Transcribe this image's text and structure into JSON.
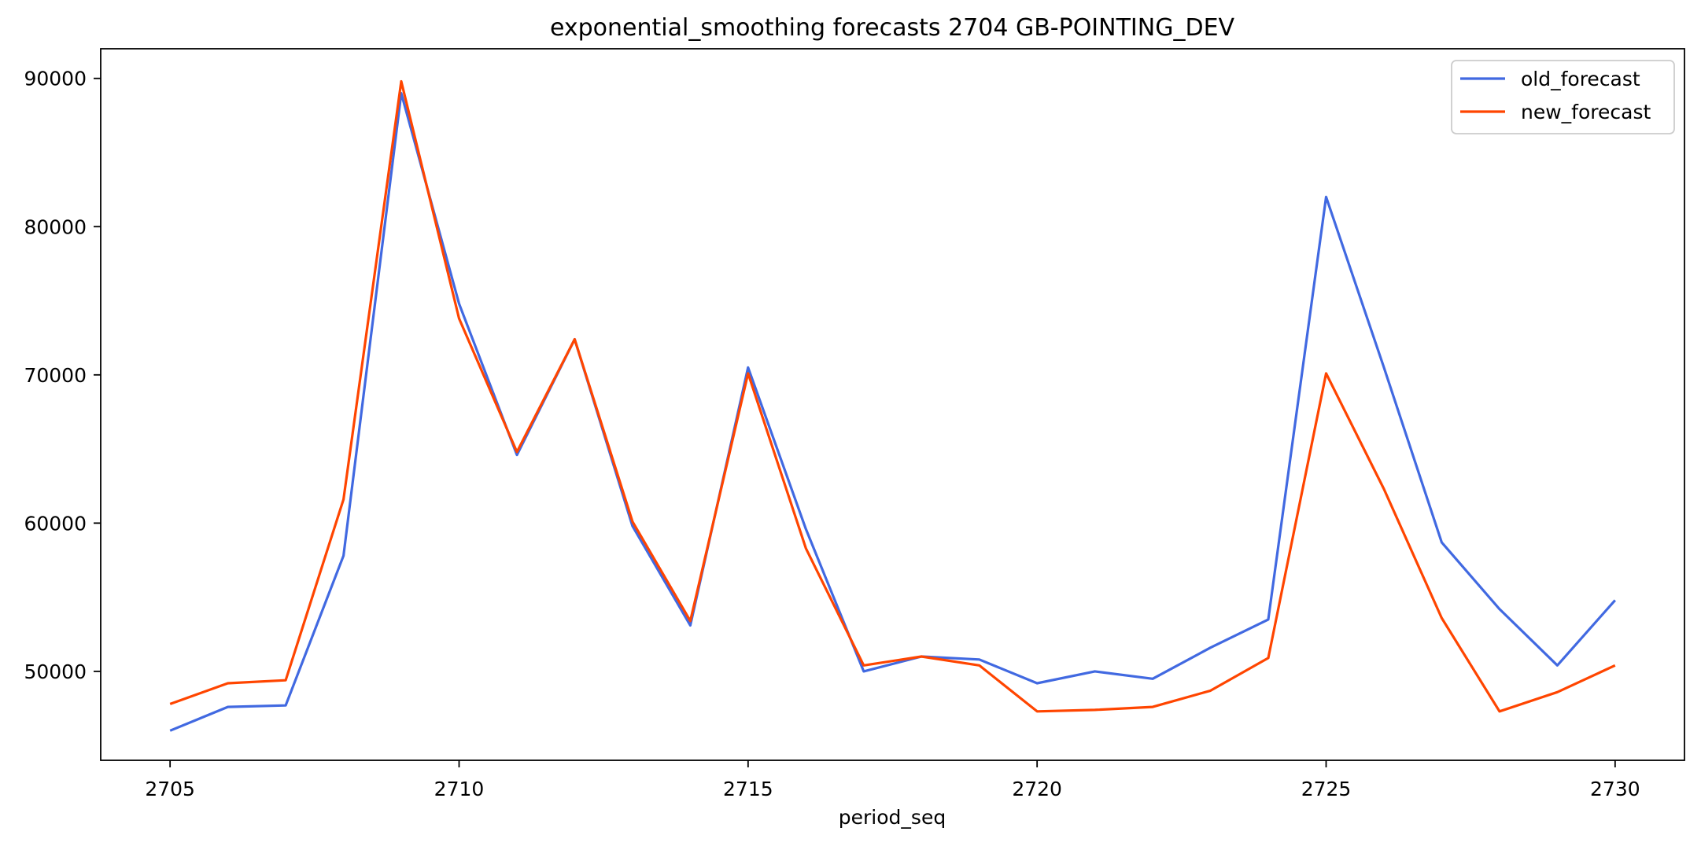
{
  "chart_data": {
    "type": "line",
    "title": "exponential_smoothing forecasts 2704 GB-POINTING_DEV",
    "xlabel": "period_seq",
    "ylabel": "",
    "x": [
      2705,
      2706,
      2707,
      2708,
      2709,
      2710,
      2711,
      2712,
      2713,
      2714,
      2715,
      2716,
      2717,
      2718,
      2719,
      2720,
      2721,
      2722,
      2723,
      2724,
      2725,
      2726,
      2727,
      2728,
      2729,
      2730
    ],
    "xlim": [
      2703.8,
      2731.2
    ],
    "ylim": [
      44000,
      92000
    ],
    "xticks": [
      2705,
      2710,
      2715,
      2720,
      2725,
      2730
    ],
    "yticks": [
      50000,
      60000,
      70000,
      80000,
      90000
    ],
    "grid": false,
    "legend_position": "top-right",
    "series": [
      {
        "name": "old_forecast",
        "color": "#4169e1",
        "values": [
          46000,
          47600,
          47700,
          57800,
          89000,
          74800,
          64600,
          72400,
          59800,
          53100,
          70500,
          59600,
          50000,
          51000,
          50800,
          49200,
          50000,
          49500,
          51600,
          53500,
          82000,
          70500,
          58700,
          54200,
          50400,
          54800
        ]
      },
      {
        "name": "new_forecast",
        "color": "#ff4500",
        "values": [
          47800,
          49200,
          49400,
          61600,
          89800,
          73800,
          64800,
          72400,
          60100,
          53400,
          70100,
          58300,
          50400,
          51000,
          50400,
          47300,
          47400,
          47600,
          48700,
          50900,
          70100,
          62300,
          53600,
          47300,
          48600,
          50400
        ]
      }
    ]
  }
}
